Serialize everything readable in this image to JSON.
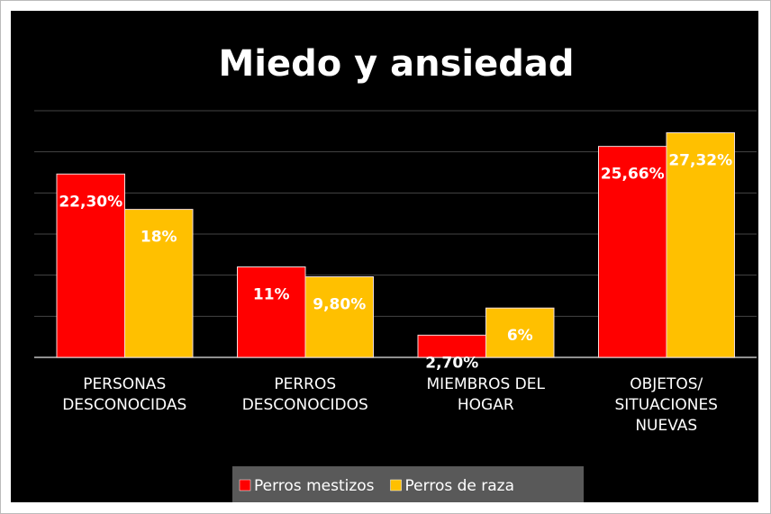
{
  "chart_data": {
    "type": "bar",
    "title": "Miedo y ansiedad",
    "categories": [
      "PERSONAS\nDESCONOCIDAS",
      "PERROS\nDESCONOCIDOS",
      "MIEMBROS DEL\nHOGAR",
      "OBJETOS/\nSITUACIONES\nNUEVAS"
    ],
    "series": [
      {
        "name": "Perros mestizos",
        "color": "#ff0000",
        "values": [
          22.3,
          11,
          2.7,
          25.66
        ],
        "value_labels": [
          "22,30%",
          "11%",
          "2,70%",
          "25,66%"
        ]
      },
      {
        "name": "Perros de raza",
        "color": "#ffc000",
        "values": [
          18,
          9.8,
          6,
          27.32
        ],
        "value_labels": [
          "18%",
          "9,80%",
          "6%",
          "27,32%"
        ]
      }
    ],
    "ylim": [
      0,
      30
    ],
    "yticks": [
      0,
      5,
      10,
      15,
      20,
      25,
      30
    ],
    "grid": true,
    "legend": "bottom"
  }
}
